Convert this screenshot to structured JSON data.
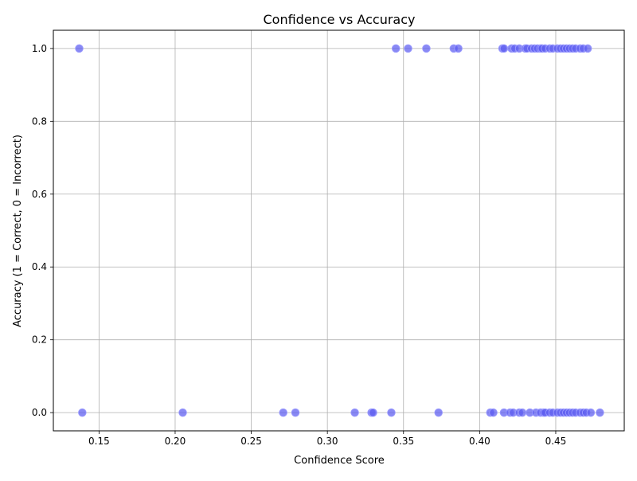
{
  "chart_data": {
    "type": "scatter",
    "title": "Confidence vs Accuracy",
    "xlabel": "Confidence Score",
    "ylabel": "Accuracy (1 = Correct, 0 = Incorrect)",
    "xlim": [
      0.12,
      0.495
    ],
    "ylim": [
      -0.05,
      1.05
    ],
    "xticks": [
      0.15,
      0.2,
      0.25,
      0.3,
      0.35,
      0.4,
      0.45
    ],
    "xtick_labels": [
      "0.15",
      "0.20",
      "0.25",
      "0.30",
      "0.35",
      "0.40",
      "0.45"
    ],
    "yticks": [
      0.0,
      0.2,
      0.4,
      0.6,
      0.8,
      1.0
    ],
    "ytick_labels": [
      "0.0",
      "0.2",
      "0.4",
      "0.6",
      "0.8",
      "1.0"
    ],
    "grid": true,
    "marker_color": "#5b5bf0",
    "marker_edge_color": "#9a9aff",
    "points": [
      {
        "x": 0.137,
        "y": 1
      },
      {
        "x": 0.345,
        "y": 1
      },
      {
        "x": 0.353,
        "y": 1
      },
      {
        "x": 0.365,
        "y": 1
      },
      {
        "x": 0.383,
        "y": 1
      },
      {
        "x": 0.386,
        "y": 1
      },
      {
        "x": 0.415,
        "y": 1
      },
      {
        "x": 0.416,
        "y": 1
      },
      {
        "x": 0.421,
        "y": 1
      },
      {
        "x": 0.423,
        "y": 1
      },
      {
        "x": 0.426,
        "y": 1
      },
      {
        "x": 0.43,
        "y": 1
      },
      {
        "x": 0.431,
        "y": 1
      },
      {
        "x": 0.434,
        "y": 1
      },
      {
        "x": 0.436,
        "y": 1
      },
      {
        "x": 0.438,
        "y": 1
      },
      {
        "x": 0.44,
        "y": 1
      },
      {
        "x": 0.441,
        "y": 1
      },
      {
        "x": 0.443,
        "y": 1
      },
      {
        "x": 0.446,
        "y": 1
      },
      {
        "x": 0.448,
        "y": 1
      },
      {
        "x": 0.451,
        "y": 1
      },
      {
        "x": 0.453,
        "y": 1
      },
      {
        "x": 0.455,
        "y": 1
      },
      {
        "x": 0.457,
        "y": 1
      },
      {
        "x": 0.459,
        "y": 1
      },
      {
        "x": 0.461,
        "y": 1
      },
      {
        "x": 0.463,
        "y": 1
      },
      {
        "x": 0.466,
        "y": 1
      },
      {
        "x": 0.468,
        "y": 1
      },
      {
        "x": 0.471,
        "y": 1
      },
      {
        "x": 0.139,
        "y": 0
      },
      {
        "x": 0.205,
        "y": 0
      },
      {
        "x": 0.271,
        "y": 0
      },
      {
        "x": 0.279,
        "y": 0
      },
      {
        "x": 0.318,
        "y": 0
      },
      {
        "x": 0.329,
        "y": 0
      },
      {
        "x": 0.33,
        "y": 0
      },
      {
        "x": 0.342,
        "y": 0
      },
      {
        "x": 0.373,
        "y": 0
      },
      {
        "x": 0.407,
        "y": 0
      },
      {
        "x": 0.409,
        "y": 0
      },
      {
        "x": 0.416,
        "y": 0
      },
      {
        "x": 0.42,
        "y": 0
      },
      {
        "x": 0.422,
        "y": 0
      },
      {
        "x": 0.426,
        "y": 0
      },
      {
        "x": 0.428,
        "y": 0
      },
      {
        "x": 0.433,
        "y": 0
      },
      {
        "x": 0.437,
        "y": 0
      },
      {
        "x": 0.44,
        "y": 0
      },
      {
        "x": 0.442,
        "y": 0
      },
      {
        "x": 0.443,
        "y": 0
      },
      {
        "x": 0.446,
        "y": 0
      },
      {
        "x": 0.448,
        "y": 0
      },
      {
        "x": 0.451,
        "y": 0
      },
      {
        "x": 0.453,
        "y": 0
      },
      {
        "x": 0.455,
        "y": 0
      },
      {
        "x": 0.457,
        "y": 0
      },
      {
        "x": 0.459,
        "y": 0
      },
      {
        "x": 0.461,
        "y": 0
      },
      {
        "x": 0.463,
        "y": 0
      },
      {
        "x": 0.466,
        "y": 0
      },
      {
        "x": 0.468,
        "y": 0
      },
      {
        "x": 0.47,
        "y": 0
      },
      {
        "x": 0.473,
        "y": 0
      },
      {
        "x": 0.479,
        "y": 0
      }
    ]
  }
}
